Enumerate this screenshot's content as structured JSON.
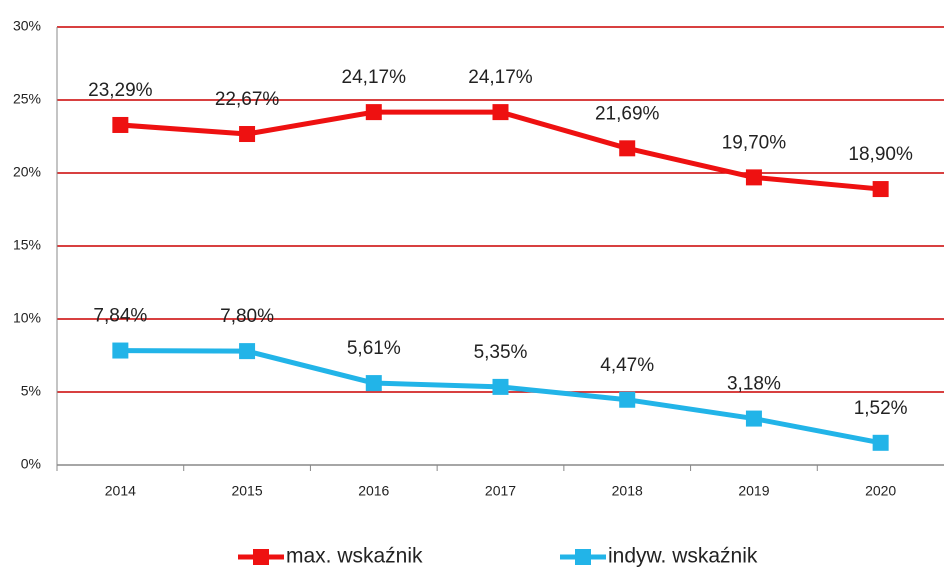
{
  "chart_data": {
    "type": "line",
    "categories": [
      "2014",
      "2015",
      "2016",
      "2017",
      "2018",
      "2019",
      "2020"
    ],
    "series": [
      {
        "name": "max. wskaźnik",
        "color": "#ee1111",
        "values": [
          23.29,
          22.67,
          24.17,
          24.17,
          21.69,
          19.7,
          18.9
        ],
        "value_labels": [
          "23,29%",
          "22,67%",
          "24,17%",
          "24,17%",
          "21,69%",
          "19,70%",
          "18,90%"
        ]
      },
      {
        "name": "indyw. wskaźnik",
        "color": "#22b4e8",
        "values": [
          7.84,
          7.8,
          5.61,
          5.35,
          4.47,
          3.18,
          1.52
        ],
        "value_labels": [
          "7,84%",
          "7,80%",
          "5,61%",
          "5,35%",
          "4,47%",
          "3,18%",
          "1,52%"
        ]
      }
    ],
    "ylim": [
      0,
      30
    ],
    "yticks": [
      {
        "value": 0,
        "label": "0%"
      },
      {
        "value": 5,
        "label": "5%"
      },
      {
        "value": 10,
        "label": "10%"
      },
      {
        "value": 15,
        "label": "15%"
      },
      {
        "value": 20,
        "label": "20%"
      },
      {
        "value": 25,
        "label": "25%"
      },
      {
        "value": 30,
        "label": "30%"
      }
    ],
    "grid": true,
    "grid_color": "#cc0000",
    "legend": "bottom"
  }
}
